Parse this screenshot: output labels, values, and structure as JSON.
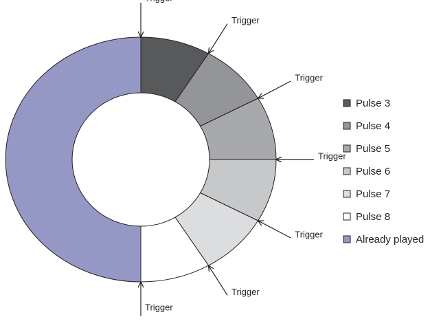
{
  "chart_data": {
    "type": "donut",
    "categories": [
      "Pulse 3",
      "Pulse 4",
      "Pulse 5",
      "Pulse 6",
      "Pulse 7",
      "Pulse 8",
      "Already played"
    ],
    "values": [
      1,
      1,
      1,
      1,
      1,
      1,
      6
    ],
    "colors": [
      "#58595b",
      "#939598",
      "#a7a9ac",
      "#c7c8ca",
      "#dcddde",
      "#ffffff",
      "#9597c5"
    ],
    "annotations": [
      "Trigger",
      "Trigger",
      "Trigger",
      "Trigger",
      "Trigger",
      "Trigger",
      "Trigger"
    ],
    "legend": "right"
  }
}
